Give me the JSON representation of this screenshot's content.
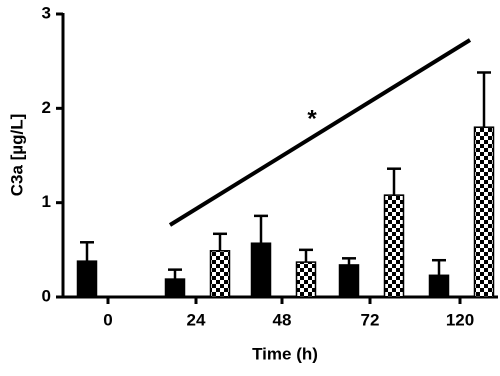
{
  "chart_data": {
    "type": "bar",
    "y_label": "C3a [µg/L]",
    "x_label": "Time (h)",
    "annotation": "*",
    "categories": [
      "0",
      "24",
      "48",
      "72",
      "120"
    ],
    "series": [
      {
        "color": "#000000",
        "pattern": "solid",
        "values": [
          0.38,
          0.19,
          0.57,
          0.34,
          0.23
        ],
        "errors": [
          0.2,
          0.1,
          0.29,
          0.07,
          0.16
        ]
      },
      {
        "color": "#000000",
        "pattern": "checkerboard",
        "values": [
          null,
          0.49,
          0.37,
          1.08,
          1.8
        ],
        "errors": [
          null,
          0.18,
          0.13,
          0.28,
          0.58
        ]
      }
    ],
    "ylim": [
      0,
      3
    ],
    "yticks": [
      0,
      1,
      2,
      3
    ]
  }
}
